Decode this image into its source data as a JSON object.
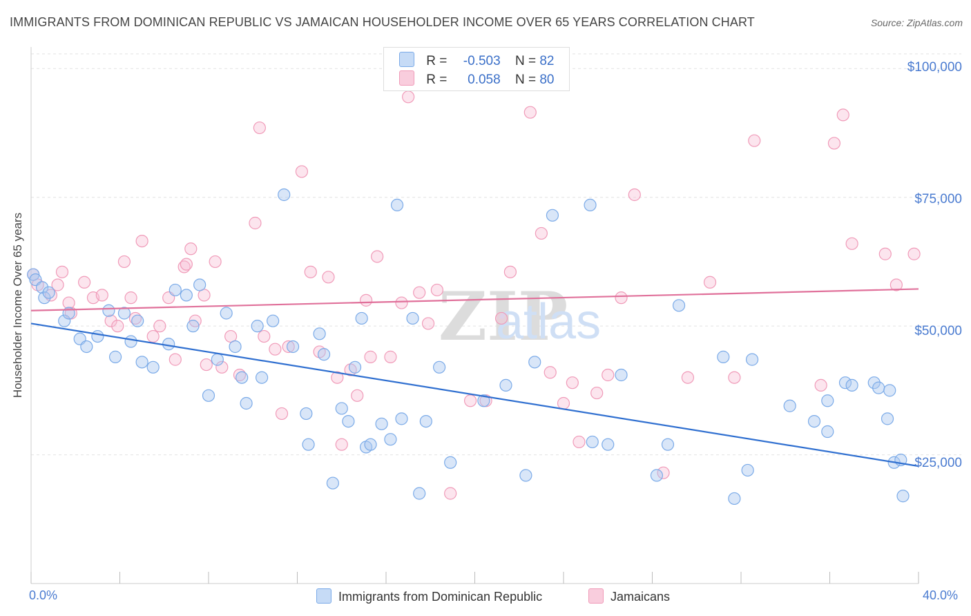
{
  "title": "IMMIGRANTS FROM DOMINICAN REPUBLIC VS JAMAICAN HOUSEHOLDER INCOME OVER 65 YEARS CORRELATION CHART",
  "source": "Source: ZipAtlas.com",
  "watermark": {
    "zip": "ZIP",
    "atlas": "atlas"
  },
  "colors": {
    "blue": "#7aaae8",
    "blue_line": "#2f6fd0",
    "pink": "#f09ab8",
    "pink_line": "#e0709a"
  },
  "legend": {
    "rows": [
      {
        "r_label": "R =",
        "r_value": "-0.503",
        "n_label": "N =",
        "n_value": "82"
      },
      {
        "r_label": "R =",
        "r_value": "0.058",
        "n_label": "N =",
        "n_value": "80"
      }
    ]
  },
  "chart_data": {
    "type": "scatter",
    "xlabel": "",
    "ylabel": "Householder Income Over 65 years",
    "xlim": [
      0,
      40
    ],
    "ylim": [
      0,
      105000
    ],
    "y_ticks": [
      25000,
      50000,
      75000,
      100000
    ],
    "y_tick_labels": [
      "$25,000",
      "$50,000",
      "$75,000",
      "$100,000"
    ],
    "x_tick_labels": [
      "0.0%",
      "40.0%"
    ],
    "grid": true,
    "legend_placement": "top-center",
    "series": [
      {
        "name": "Immigrants from Dominican Republic",
        "trend": {
          "start": [
            0,
            50500
          ],
          "end": [
            40,
            22800
          ]
        },
        "points": [
          [
            0.1,
            60000
          ],
          [
            0.2,
            59000
          ],
          [
            0.5,
            57500
          ],
          [
            0.6,
            55500
          ],
          [
            0.8,
            56500
          ],
          [
            1.5,
            51000
          ],
          [
            1.7,
            52500
          ],
          [
            2.2,
            47500
          ],
          [
            2.5,
            46000
          ],
          [
            3.0,
            48000
          ],
          [
            3.5,
            53000
          ],
          [
            4.2,
            52500
          ],
          [
            4.5,
            47000
          ],
          [
            3.8,
            44000
          ],
          [
            4.8,
            51000
          ],
          [
            5.0,
            43000
          ],
          [
            5.5,
            42000
          ],
          [
            6.2,
            46500
          ],
          [
            6.5,
            57000
          ],
          [
            7.0,
            56000
          ],
          [
            7.3,
            50000
          ],
          [
            7.6,
            58000
          ],
          [
            8.0,
            36500
          ],
          [
            8.4,
            43500
          ],
          [
            8.8,
            52500
          ],
          [
            9.2,
            46000
          ],
          [
            9.7,
            35000
          ],
          [
            9.5,
            40000
          ],
          [
            10.4,
            40000
          ],
          [
            10.2,
            50000
          ],
          [
            10.9,
            51000
          ],
          [
            11.8,
            46000
          ],
          [
            11.4,
            75500
          ],
          [
            12.4,
            33000
          ],
          [
            12.5,
            27000
          ],
          [
            13.0,
            48500
          ],
          [
            13.2,
            44500
          ],
          [
            13.6,
            19500
          ],
          [
            14.0,
            34000
          ],
          [
            14.3,
            31500
          ],
          [
            14.6,
            42000
          ],
          [
            14.9,
            51500
          ],
          [
            15.1,
            26500
          ],
          [
            15.3,
            27000
          ],
          [
            15.8,
            31000
          ],
          [
            16.2,
            28000
          ],
          [
            16.5,
            73500
          ],
          [
            16.7,
            32000
          ],
          [
            17.2,
            51500
          ],
          [
            17.5,
            17500
          ],
          [
            17.8,
            31500
          ],
          [
            18.4,
            42000
          ],
          [
            18.9,
            23500
          ],
          [
            20.4,
            35500
          ],
          [
            21.4,
            38500
          ],
          [
            22.3,
            21000
          ],
          [
            22.7,
            43000
          ],
          [
            23.5,
            71500
          ],
          [
            25.2,
            73500
          ],
          [
            25.3,
            27500
          ],
          [
            26.0,
            27000
          ],
          [
            26.6,
            40500
          ],
          [
            28.2,
            21000
          ],
          [
            28.7,
            27000
          ],
          [
            29.2,
            54000
          ],
          [
            31.2,
            44000
          ],
          [
            31.7,
            16500
          ],
          [
            32.3,
            22000
          ],
          [
            32.5,
            43500
          ],
          [
            34.2,
            34500
          ],
          [
            35.3,
            31500
          ],
          [
            35.9,
            35500
          ],
          [
            35.9,
            29500
          ],
          [
            36.7,
            39000
          ],
          [
            37.0,
            38500
          ],
          [
            38.0,
            39000
          ],
          [
            38.2,
            38000
          ],
          [
            38.6,
            32000
          ],
          [
            38.9,
            23500
          ],
          [
            38.7,
            37500
          ],
          [
            39.3,
            17000
          ],
          [
            39.2,
            24000
          ]
        ]
      },
      {
        "name": "Jamaicans",
        "trend": {
          "start": [
            0,
            53000
          ],
          "end": [
            40,
            57200
          ]
        },
        "points": [
          [
            0.1,
            60000
          ],
          [
            0.3,
            58000
          ],
          [
            0.9,
            56000
          ],
          [
            1.2,
            58000
          ],
          [
            1.4,
            60500
          ],
          [
            1.8,
            52500
          ],
          [
            1.7,
            54500
          ],
          [
            2.4,
            58500
          ],
          [
            2.8,
            55500
          ],
          [
            3.2,
            56000
          ],
          [
            3.6,
            51000
          ],
          [
            3.9,
            50000
          ],
          [
            4.2,
            62500
          ],
          [
            4.5,
            55500
          ],
          [
            4.7,
            51500
          ],
          [
            5.0,
            66500
          ],
          [
            5.5,
            48000
          ],
          [
            5.8,
            50000
          ],
          [
            6.2,
            55500
          ],
          [
            6.5,
            43500
          ],
          [
            6.9,
            61500
          ],
          [
            7.0,
            62000
          ],
          [
            7.2,
            65000
          ],
          [
            7.4,
            51000
          ],
          [
            7.8,
            56000
          ],
          [
            7.9,
            42500
          ],
          [
            8.3,
            62500
          ],
          [
            8.6,
            42000
          ],
          [
            9.0,
            48000
          ],
          [
            9.4,
            40500
          ],
          [
            10.1,
            70000
          ],
          [
            10.3,
            88500
          ],
          [
            10.5,
            48000
          ],
          [
            11.0,
            45500
          ],
          [
            11.3,
            33000
          ],
          [
            11.6,
            46000
          ],
          [
            12.2,
            80000
          ],
          [
            12.6,
            60500
          ],
          [
            13.0,
            45000
          ],
          [
            13.4,
            59500
          ],
          [
            13.8,
            40000
          ],
          [
            14.0,
            27000
          ],
          [
            14.4,
            41500
          ],
          [
            14.7,
            36500
          ],
          [
            15.1,
            55000
          ],
          [
            15.3,
            44000
          ],
          [
            15.6,
            63500
          ],
          [
            16.2,
            44000
          ],
          [
            16.7,
            54500
          ],
          [
            17.0,
            94500
          ],
          [
            17.5,
            56500
          ],
          [
            17.9,
            50500
          ],
          [
            18.3,
            57000
          ],
          [
            18.9,
            17500
          ],
          [
            19.8,
            35500
          ],
          [
            20.5,
            35500
          ],
          [
            21.2,
            51500
          ],
          [
            21.6,
            60500
          ],
          [
            22.5,
            91500
          ],
          [
            23.0,
            68000
          ],
          [
            23.4,
            41000
          ],
          [
            24.0,
            35000
          ],
          [
            24.4,
            39000
          ],
          [
            24.7,
            27500
          ],
          [
            25.5,
            37000
          ],
          [
            26.0,
            40500
          ],
          [
            26.6,
            55500
          ],
          [
            27.2,
            75500
          ],
          [
            28.5,
            21500
          ],
          [
            29.6,
            40000
          ],
          [
            30.6,
            58500
          ],
          [
            31.7,
            40000
          ],
          [
            32.6,
            86000
          ],
          [
            35.6,
            38500
          ],
          [
            36.2,
            85500
          ],
          [
            36.6,
            91000
          ],
          [
            37.0,
            66000
          ],
          [
            38.5,
            64000
          ],
          [
            39.0,
            58000
          ],
          [
            39.8,
            64000
          ]
        ]
      }
    ]
  },
  "bottom_legend": [
    "Immigrants from Dominican Republic",
    "Jamaicans"
  ]
}
